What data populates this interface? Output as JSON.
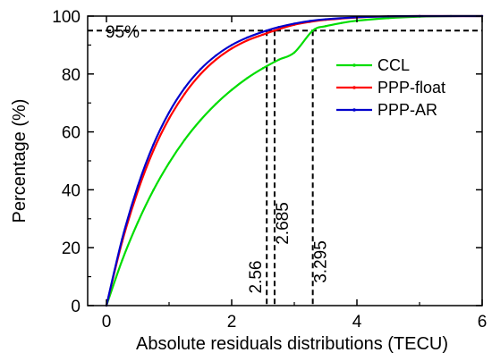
{
  "chart_data": {
    "type": "line",
    "title": "",
    "xlabel": "Absolute residuals distributions (TECU)",
    "ylabel": "Percentage (%)",
    "xlim": [
      -0.3,
      6
    ],
    "ylim": [
      0,
      100
    ],
    "xticks": [
      "0",
      "2",
      "4",
      "6"
    ],
    "yticks": [
      "0",
      "20",
      "40",
      "60",
      "80",
      "100"
    ],
    "grid": false,
    "legend_position": "right",
    "series": [
      {
        "name": "CCL",
        "color": "#00dd00",
        "x": [
          0,
          0.25,
          0.5,
          0.75,
          1.0,
          1.25,
          1.5,
          1.75,
          2.0,
          2.25,
          2.5,
          2.75,
          3.0,
          3.295,
          3.5,
          3.75,
          4.0,
          4.5,
          5.0,
          5.5,
          6.0
        ],
        "y": [
          0,
          15.6,
          28.7,
          39.9,
          49.3,
          57.3,
          64.0,
          69.7,
          74.5,
          78.6,
          82.0,
          84.9,
          87.4,
          95.0,
          96.5,
          97.6,
          98.4,
          99.3,
          99.8,
          100.0,
          100.0
        ]
      },
      {
        "name": "PPP-float",
        "color": "#ff0000",
        "x": [
          0,
          0.25,
          0.5,
          0.75,
          1.0,
          1.25,
          1.5,
          1.75,
          2.0,
          2.25,
          2.5,
          2.685,
          3.0,
          3.25,
          3.5,
          4.0,
          4.5,
          5.0,
          6.0
        ],
        "y": [
          0,
          22.0,
          39.5,
          53.6,
          64.6,
          73.2,
          79.9,
          85.0,
          88.8,
          91.6,
          93.6,
          95.0,
          97.0,
          98.0,
          98.7,
          99.5,
          99.9,
          100.0,
          100.0
        ]
      },
      {
        "name": "PPP-AR",
        "color": "#0000cc",
        "x": [
          0,
          0.25,
          0.5,
          0.75,
          1.0,
          1.25,
          1.5,
          1.75,
          2.0,
          2.25,
          2.56,
          2.75,
          3.0,
          3.25,
          3.5,
          4.0,
          4.5,
          5.0,
          6.0
        ],
        "y": [
          0,
          23.0,
          41.2,
          55.6,
          66.7,
          75.2,
          81.6,
          86.4,
          90.0,
          92.6,
          95.0,
          96.2,
          97.4,
          98.3,
          98.9,
          99.6,
          99.9,
          100.0,
          100.0
        ]
      }
    ],
    "annotations": {
      "threshold_y": 95,
      "threshold_label": "95%",
      "vlines": [
        {
          "x": 2.56,
          "label": "2.56"
        },
        {
          "x": 2.685,
          "label": "2.685"
        },
        {
          "x": 3.295,
          "label": "3.295"
        }
      ]
    }
  }
}
